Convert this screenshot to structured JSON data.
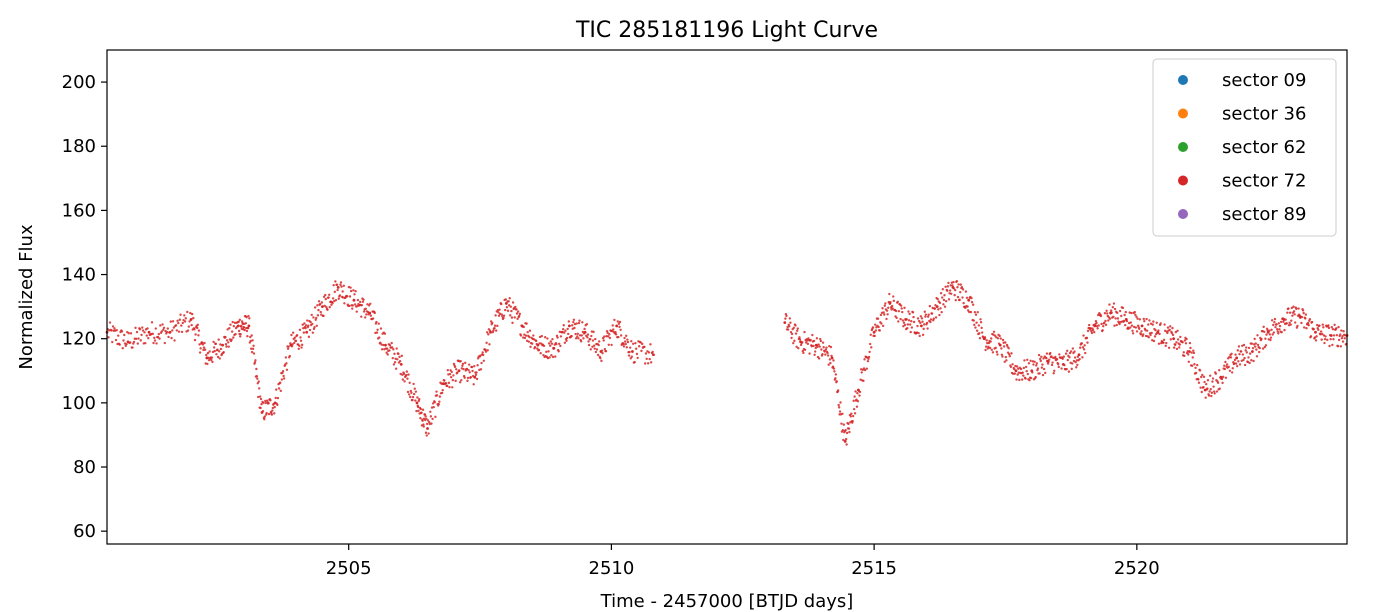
{
  "chart_data": {
    "type": "scatter",
    "title": "TIC 285181196 Light Curve",
    "xlabel": "Time - 2457000 [BTJD days]",
    "ylabel": "Normalized Flux",
    "xlim": [
      2500.4,
      2524.0
    ],
    "ylim": [
      56,
      210
    ],
    "xticks": [
      2505,
      2510,
      2515,
      2520
    ],
    "yticks": [
      60,
      80,
      100,
      120,
      140,
      160,
      180,
      200
    ],
    "grid": false,
    "legend_position": "top-right",
    "legend": [
      {
        "name": "sector 09",
        "color": "#1f77b4"
      },
      {
        "name": "sector 36",
        "color": "#ff7f0e"
      },
      {
        "name": "sector 62",
        "color": "#2ca02c"
      },
      {
        "name": "sector 72",
        "color": "#d62728"
      },
      {
        "name": "sector 89",
        "color": "#9467bd"
      }
    ],
    "series": [
      {
        "name": "sector 72",
        "color": "#d62728",
        "x": [
          2500.4,
          2500.8,
          2501.2,
          2501.6,
          2502.0,
          2502.3,
          2502.6,
          2502.9,
          2503.1,
          2503.35,
          2503.6,
          2503.9,
          2504.2,
          2504.5,
          2504.8,
          2505.1,
          2505.4,
          2505.7,
          2506.0,
          2506.3,
          2506.5,
          2506.8,
          2507.1,
          2507.4,
          2507.7,
          2508.0,
          2508.3,
          2508.6,
          2508.9,
          2509.2,
          2509.5,
          2509.8,
          2510.1,
          2510.4,
          2510.8,
          2513.3,
          2513.6,
          2513.9,
          2514.2,
          2514.45,
          2514.7,
          2515.0,
          2515.3,
          2515.6,
          2515.9,
          2516.2,
          2516.5,
          2516.8,
          2517.1,
          2517.4,
          2517.7,
          2518.0,
          2518.3,
          2518.6,
          2518.9,
          2519.2,
          2519.5,
          2519.8,
          2520.1,
          2520.4,
          2520.7,
          2521.0,
          2521.3,
          2521.6,
          2521.9,
          2522.2,
          2522.5,
          2522.8,
          2523.1,
          2523.4,
          2523.7,
          2524.0
        ],
        "y": [
          122,
          119,
          122,
          122,
          126,
          114,
          118,
          124,
          124,
          97,
          100,
          118,
          122,
          130,
          136,
          132,
          128,
          118,
          112,
          100,
          92,
          106,
          110,
          108,
          122,
          131,
          124,
          118,
          117,
          124,
          122,
          116,
          124,
          116,
          115,
          125,
          119,
          118,
          114,
          88,
          104,
          122,
          131,
          126,
          124,
          130,
          136,
          132,
          120,
          118,
          110,
          110,
          113,
          112,
          115,
          124,
          128,
          126,
          124,
          122,
          120,
          116,
          104,
          108,
          114,
          116,
          122,
          126,
          127,
          122,
          121,
          121
        ]
      }
    ]
  }
}
